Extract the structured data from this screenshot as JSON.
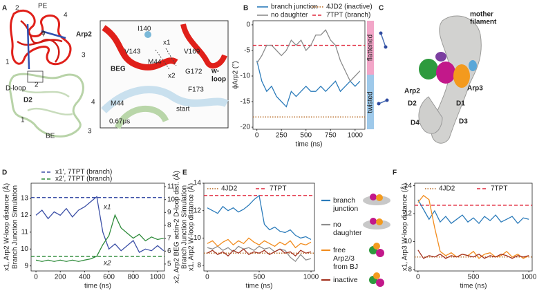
{
  "panel_labels": [
    "A",
    "B",
    "C",
    "D",
    "E",
    "F"
  ],
  "panel_a": {
    "labels": [
      "PE",
      "2",
      "4",
      "ϕ",
      "1",
      "3",
      "Arp2",
      "D-loop",
      "2",
      "D2",
      "4",
      "1",
      "3",
      "BE"
    ]
  },
  "panel_a_inset": {
    "labels": [
      "I140",
      "V143",
      "x1",
      "V169",
      "BEG",
      "M44",
      "G172",
      "w-",
      "loop",
      "x2",
      "F173",
      "M44",
      "start",
      "0.67μs"
    ]
  },
  "panel_b_side": {
    "labels": [
      "flattened",
      "twisted"
    ]
  },
  "panel_c": {
    "labels": [
      "mother",
      "filament",
      "Arp2",
      "Arp3",
      "D2",
      "D1",
      "D3",
      "D4"
    ]
  },
  "chart_data": [
    {
      "type": "line",
      "x_label": "time (ns)",
      "y_label": [
        "ϕArp2 (°)"
      ],
      "x": [
        0,
        50,
        100,
        150,
        200,
        250,
        300,
        350,
        400,
        450,
        500,
        550,
        600,
        650,
        700,
        750,
        800,
        850,
        900,
        950,
        1000,
        1050
      ],
      "series": [
        {
          "name": "branch junction",
          "color": "#2b7bba",
          "values": [
            -7,
            -11,
            -13,
            -12,
            -14,
            -15,
            -16,
            -13,
            -14,
            -13,
            -12,
            -13,
            -13,
            -12,
            -13,
            -12,
            -11,
            -13,
            -12,
            -11,
            -12,
            -11
          ]
        },
        {
          "name": "no daughter",
          "color": "#8c8c8c",
          "values": [
            -7.5,
            -6,
            -4,
            -4,
            -5,
            -6,
            -5,
            -3,
            -4,
            -3,
            -5,
            -4,
            -2,
            -2,
            -1,
            -3,
            -4,
            -7,
            -9,
            -11,
            -10,
            -9
          ]
        }
      ],
      "reference_lines": [
        {
          "name": "4JD2 (inactive)",
          "value": -18,
          "color": "#b5651d",
          "style": "dotted"
        },
        {
          "name": "7TPT (branch)",
          "value": -4,
          "color": "#e0263a",
          "style": "dashed"
        }
      ],
      "xlim": [
        -40,
        1100
      ],
      "xticks": [
        0,
        250,
        500,
        750,
        1000
      ],
      "ylim": [
        -20.4,
        0.8
      ],
      "yticks": [
        0,
        -5,
        -10,
        -15,
        -20
      ]
    },
    {
      "type": "line",
      "x_label": "time (ns)",
      "y_label": [
        "x1, Arp2 W-loop distance (Å)",
        "Branch Junction Simulation"
      ],
      "y2_label": [
        "x2, Arp2 BEG actin-2 D-loop dist. (Å)",
        "Branch Junction Simulation"
      ],
      "x": [
        0,
        50,
        100,
        150,
        200,
        250,
        300,
        350,
        400,
        450,
        500,
        550,
        600,
        650,
        700,
        750,
        800,
        850,
        900,
        950,
        1000,
        1050
      ],
      "series": [
        {
          "name": "x1",
          "color": "#3b4fa6",
          "values": [
            12.0,
            12.3,
            11.8,
            12.2,
            12.0,
            12.4,
            11.9,
            12.3,
            12.5,
            12.8,
            13.1,
            11.0,
            10.0,
            10.3,
            9.9,
            10.2,
            10.5,
            9.8,
            10.0,
            9.9,
            10.2,
            9.9
          ]
        },
        {
          "name": "x2",
          "color": "#2e8b3a",
          "axis": "y2",
          "values": [
            5.3,
            5.2,
            5.3,
            5.2,
            5.3,
            5.2,
            5.3,
            5.2,
            5.3,
            5.4,
            5.6,
            6.5,
            7.2,
            8.8,
            7.8,
            7.4,
            7.0,
            7.3,
            6.8,
            7.1,
            6.9,
            7.0
          ]
        }
      ],
      "reference_lines": [
        {
          "name": "x1', 7TPT (branch)",
          "value": 13.05,
          "color": "#3b4fa6",
          "style": "dashed"
        },
        {
          "name": "x2', 7TPT (branch)",
          "value": 5.6,
          "color": "#2e8b3a",
          "style": "dashed",
          "axis": "y2"
        }
      ],
      "xlim": [
        -40,
        1057
      ],
      "xticks": [
        0,
        200,
        400,
        600,
        800,
        1000
      ],
      "ylim": [
        8.7,
        13.9
      ],
      "yticks": [
        9,
        10,
        11,
        12,
        13
      ],
      "y2lim": [
        4.46,
        11.27
      ],
      "y2ticks": [
        5,
        6,
        7,
        8,
        9,
        10,
        11
      ]
    },
    {
      "type": "line",
      "x_label": "time (ns)",
      "y_label": [
        "x1, Arp2 W-loop distance (Å)"
      ],
      "x": [
        0,
        50,
        100,
        150,
        200,
        250,
        300,
        350,
        400,
        450,
        500,
        550,
        600,
        650,
        700,
        750,
        800,
        850,
        900,
        950,
        1000
      ],
      "series": [
        {
          "name": "branch junction",
          "color": "#2b7bba",
          "values": [
            12.2,
            12.0,
            11.8,
            12.3,
            12.0,
            12.2,
            11.9,
            12.1,
            12.4,
            12.8,
            13.1,
            11.0,
            10.6,
            10.8,
            10.5,
            10.4,
            10.6,
            10.2,
            10.0,
            10.1,
            9.9
          ]
        },
        {
          "name": "no daughter",
          "color": "#8c8c8c",
          "values": [
            9.3,
            9.2,
            9.4,
            9.1,
            9.3,
            9.0,
            9.4,
            9.2,
            9.3,
            9.1,
            9.4,
            9.2,
            9.3,
            9.0,
            9.2,
            9.1,
            8.6,
            8.3,
            8.8,
            8.4,
            8.5
          ]
        },
        {
          "name": "free Arp2/3 from BJ",
          "color": "#f28c1e",
          "values": [
            9.6,
            9.8,
            9.4,
            9.7,
            9.9,
            9.5,
            9.8,
            9.6,
            10.0,
            9.7,
            9.5,
            9.8,
            9.6,
            9.4,
            9.7,
            9.5,
            9.8,
            9.3,
            9.6,
            9.5,
            9.7
          ]
        },
        {
          "name": "inactive",
          "color": "#a3321f",
          "values": [
            8.9,
            9.1,
            8.8,
            9.0,
            8.7,
            9.1,
            8.9,
            9.2,
            8.8,
            9.0,
            8.9,
            9.1,
            8.8,
            9.0,
            9.2,
            8.9,
            9.0,
            8.7,
            9.1,
            8.9,
            9.0
          ]
        }
      ],
      "reference_lines": [
        {
          "name": "4JD2",
          "value": 8.9,
          "color": "#b5651d",
          "style": "dotted"
        },
        {
          "name": "7TPT",
          "value": 13.1,
          "color": "#e0263a",
          "style": "dashed"
        }
      ],
      "xlim": [
        -33,
        1033
      ],
      "xticks": [
        0,
        500,
        1000
      ],
      "ylim": [
        7.6,
        14.0
      ],
      "yticks": [
        8,
        10,
        12,
        14
      ]
    },
    {
      "type": "line",
      "x_label": "time (ns)",
      "y_label": [
        "x1, Arp3 W-loop distance (Å)"
      ],
      "x": [
        0,
        50,
        100,
        150,
        200,
        250,
        300,
        350,
        400,
        450,
        500,
        550,
        600,
        650,
        700,
        750,
        800,
        850,
        900,
        950,
        1000
      ],
      "series": [
        {
          "color": "#2b7bba",
          "values": [
            13.0,
            12.3,
            11.6,
            12.2,
            11.4,
            11.8,
            11.3,
            11.6,
            11.9,
            11.4,
            11.7,
            11.3,
            11.8,
            11.5,
            11.9,
            11.4,
            11.6,
            11.8,
            11.3,
            11.7,
            11.6
          ]
        },
        {
          "color": "#f28c1e",
          "values": [
            12.8,
            13.3,
            13.0,
            11.0,
            9.3,
            9.0,
            9.2,
            8.9,
            9.1,
            9.0,
            9.3,
            8.8,
            9.1,
            9.2,
            8.9,
            9.0,
            9.3,
            8.9,
            9.1,
            8.8,
            9.0
          ]
        },
        {
          "color": "#a3321f",
          "values": [
            9.4,
            8.8,
            9.0,
            8.9,
            9.1,
            8.8,
            9.0,
            8.9,
            9.1,
            9.0,
            8.9,
            9.1,
            8.8,
            9.0,
            8.9,
            9.1,
            9.0,
            8.8,
            9.0,
            8.9,
            9.0
          ]
        }
      ],
      "reference_lines": [
        {
          "name": "4JD2",
          "value": 8.9,
          "color": "#b5651d",
          "style": "dotted"
        },
        {
          "name": "7TPT",
          "value": 12.6,
          "color": "#e0263a",
          "style": "dashed"
        }
      ],
      "xlim": [
        -30,
        1030
      ],
      "xticks": [
        0,
        500,
        1000
      ],
      "ylim": [
        7.9,
        14.18
      ],
      "yticks": [
        8,
        10,
        12,
        14
      ]
    }
  ]
}
